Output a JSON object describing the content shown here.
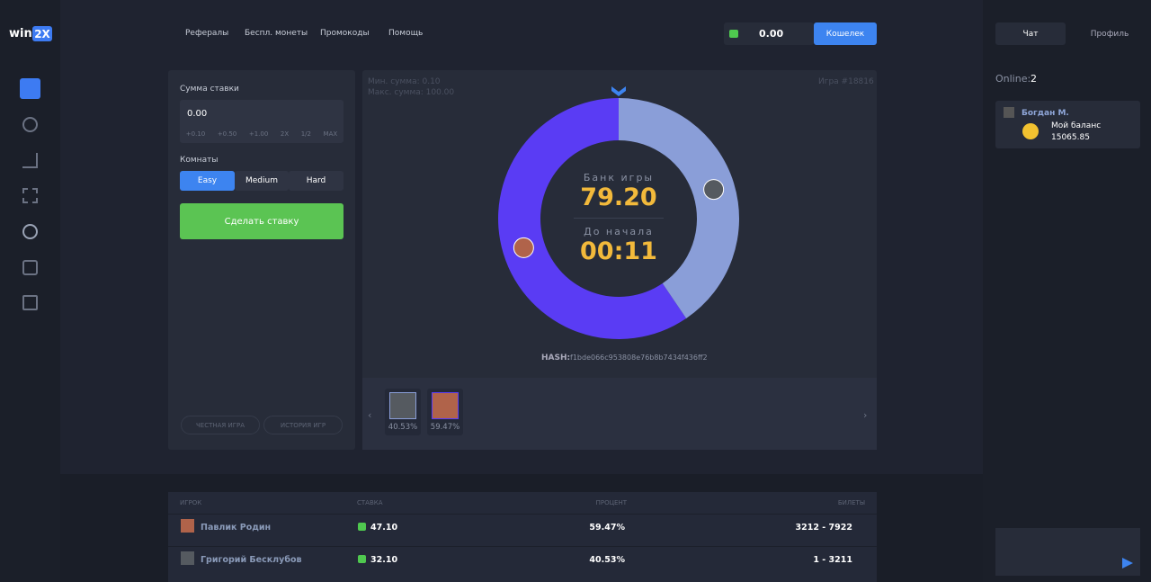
{
  "logo": {
    "text": "win",
    "badge": "2X"
  },
  "nav": [
    "Рефералы",
    "Беспл. монеты",
    "Промокоды",
    "Помощь"
  ],
  "balance": {
    "amount": "0.00",
    "button": "Кошелек"
  },
  "side": {
    "tabs": [
      "Чат",
      "Профиль"
    ],
    "online_label": "Online:",
    "online_count": "2",
    "user": {
      "name": "Богдан М.",
      "balance_label": "Мой баланс",
      "balance": "15065.85"
    }
  },
  "bet_panel": {
    "amount_label": "Сумма ставки",
    "amount": "0.00",
    "quick": [
      "+0.10",
      "+0.50",
      "+1.00",
      "2X",
      "1/2",
      "MAX"
    ],
    "rooms_label": "Комнаты",
    "rooms": [
      "Easy",
      "Medium",
      "Hard"
    ],
    "submit": "Сделать ставку",
    "links": [
      "ЧЕСТНАЯ ИГРА",
      "ИСТОРИЯ ИГР"
    ]
  },
  "game": {
    "min": "Мин. сумма: 0.10",
    "max": "Макс. сумма: 100.00",
    "game_id": "Игра #18816",
    "bank_label": "Банк игры",
    "bank": "79.20",
    "timer_label": "До начала",
    "timer": "00:11",
    "hash_label": "HASH:",
    "hash": "f1bde066c953808e76b8b7434f436ff2",
    "players": [
      {
        "color": "#8a9ed8",
        "share": {
          "value": 40.53,
          "label": "40.53%"
        }
      },
      {
        "color": "#5a3cf4",
        "share": {
          "value": 59.47,
          "label": "59.47%"
        }
      }
    ]
  },
  "table": {
    "headers": [
      "ИГРОК",
      "СТАВКА",
      "ПРОЦЕНТ",
      "БИЛЕТЫ"
    ],
    "rows": [
      [
        "Павлик Родин",
        "47.10",
        "59.47%",
        "3212 - 7922"
      ],
      [
        "Григорий Бесклубов",
        "32.10",
        "40.53%",
        "1 - 3211"
      ]
    ]
  }
}
